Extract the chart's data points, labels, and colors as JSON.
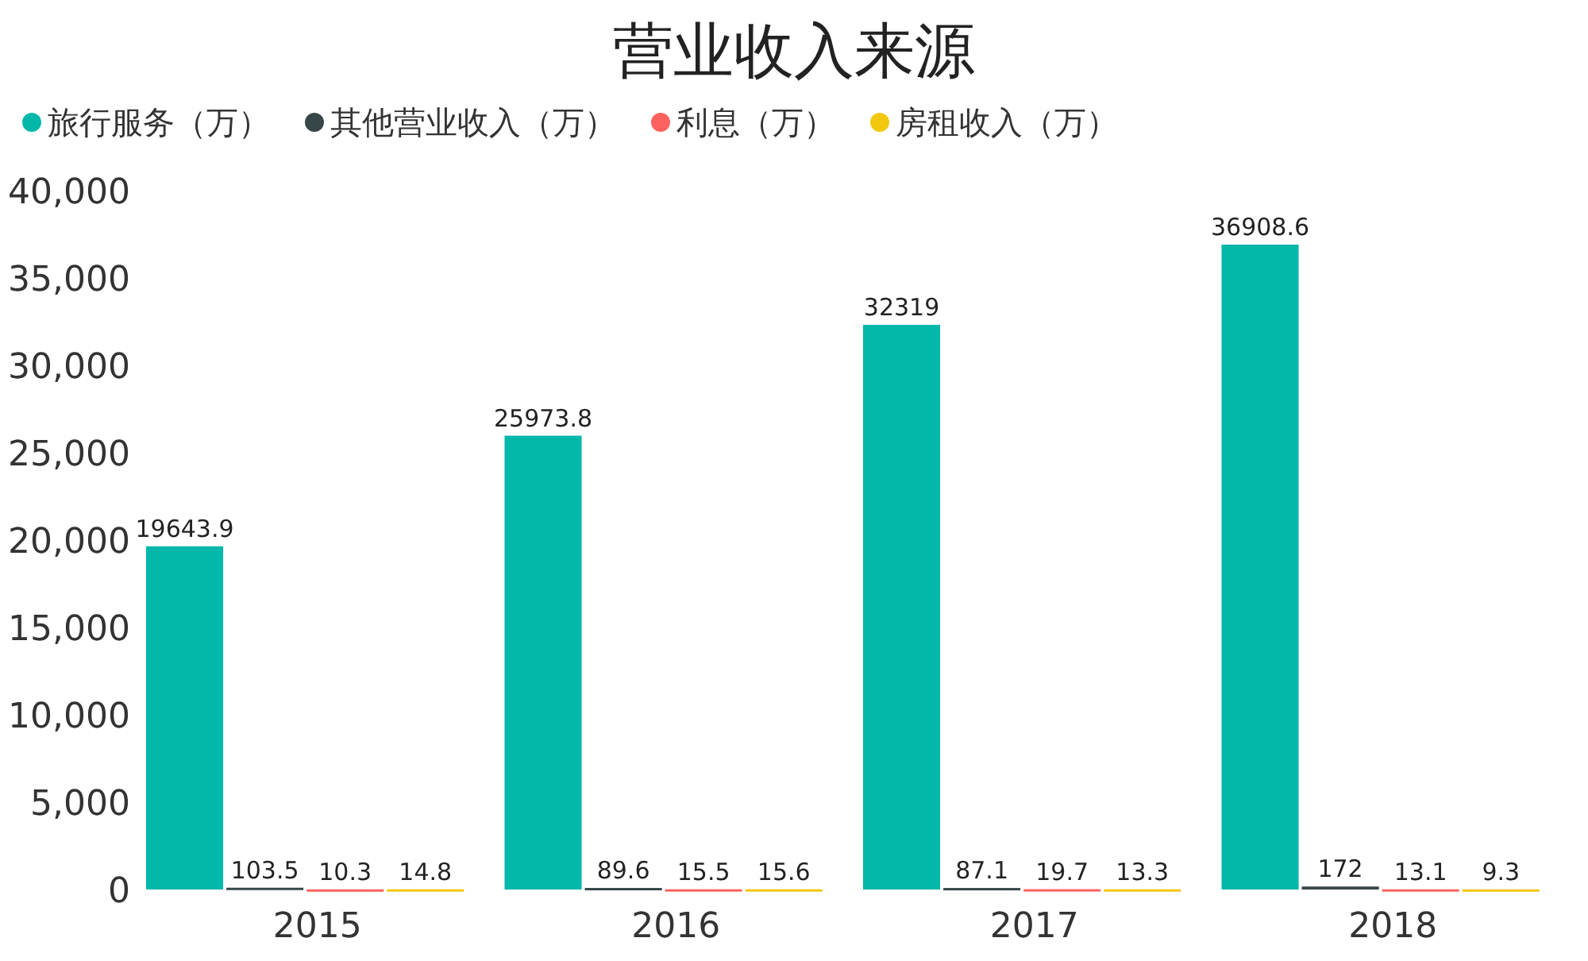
{
  "chart_data": {
    "type": "bar",
    "title": "营业收入来源",
    "categories": [
      "2015",
      "2016",
      "2017",
      "2018"
    ],
    "series": [
      {
        "name": "旅行服务（万）",
        "color": "#01b8aa",
        "values": [
          19643.9,
          25973.8,
          32319,
          36908.6
        ]
      },
      {
        "name": "其他营业收入（万）",
        "color": "#374649",
        "values": [
          103.5,
          89.6,
          87.1,
          172
        ]
      },
      {
        "name": "利息（万）",
        "color": "#fd625e",
        "values": [
          10.3,
          15.5,
          19.7,
          13.1
        ]
      },
      {
        "name": "房租收入（万）",
        "color": "#f2c80f",
        "values": [
          14.8,
          15.6,
          13.3,
          9.3
        ]
      }
    ],
    "ylim": [
      0,
      40000
    ],
    "yticks": [
      0,
      {
        "value": 5000,
        "label": "5,000"
      },
      {
        "value": 10000,
        "label": "10,000"
      },
      {
        "value": 15000,
        "label": "15,000"
      },
      {
        "value": 20000,
        "label": "20,000"
      },
      {
        "value": 25000,
        "label": "25,000"
      },
      {
        "value": 30000,
        "label": "30,000"
      },
      {
        "value": 35000,
        "label": "35,000"
      },
      {
        "value": 40000,
        "label": "40,000"
      }
    ],
    "data_labels": true,
    "grid": false,
    "legend": "top left"
  }
}
